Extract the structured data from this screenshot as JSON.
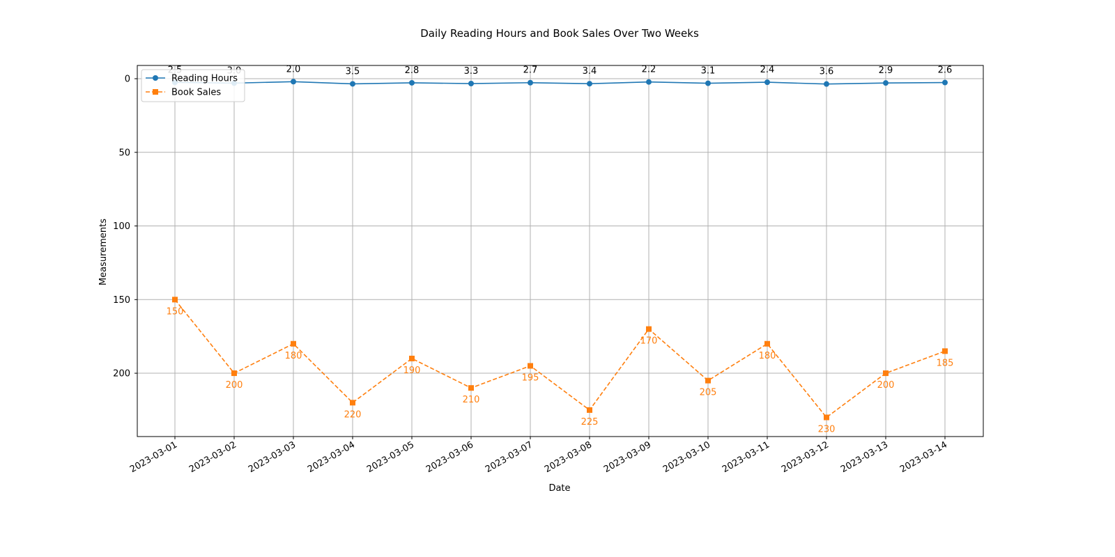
{
  "chart_data": {
    "type": "line",
    "title": "Daily Reading Hours and Book Sales Over Two Weeks",
    "xlabel": "Date",
    "ylabel": "Measurements",
    "y_inverted": true,
    "ylim": [
      243,
      -9
    ],
    "yticks": [
      0,
      50,
      100,
      150,
      200
    ],
    "grid": true,
    "legend_position": "top-left",
    "categories": [
      "2023-03-01",
      "2023-03-02",
      "2023-03-03",
      "2023-03-04",
      "2023-03-05",
      "2023-03-06",
      "2023-03-07",
      "2023-03-08",
      "2023-03-09",
      "2023-03-10",
      "2023-03-11",
      "2023-03-12",
      "2023-03-13",
      "2023-03-14"
    ],
    "series": [
      {
        "name": "Reading Hours",
        "values": [
          2.5,
          3.0,
          2.0,
          3.5,
          2.8,
          3.3,
          2.7,
          3.4,
          2.2,
          3.1,
          2.4,
          3.6,
          2.9,
          2.6
        ],
        "labels": [
          "2.5",
          "3.0",
          "2.0",
          "3.5",
          "2.8",
          "3.3",
          "2.7",
          "3.4",
          "2.2",
          "3.1",
          "2.4",
          "3.6",
          "2.9",
          "2.6"
        ],
        "color": "#1f77b4",
        "marker": "circle",
        "line_style": "solid",
        "label_position": "above",
        "label_color": "#000000"
      },
      {
        "name": "Book Sales",
        "values": [
          150,
          200,
          180,
          220,
          190,
          210,
          195,
          225,
          170,
          205,
          180,
          230,
          200,
          185
        ],
        "labels": [
          "150",
          "200",
          "180",
          "220",
          "190",
          "210",
          "195",
          "225",
          "170",
          "205",
          "180",
          "230",
          "200",
          "185"
        ],
        "color": "#ff7f0e",
        "marker": "square",
        "line_style": "dashed",
        "label_position": "below",
        "label_color": "#ff7f0e"
      }
    ]
  }
}
